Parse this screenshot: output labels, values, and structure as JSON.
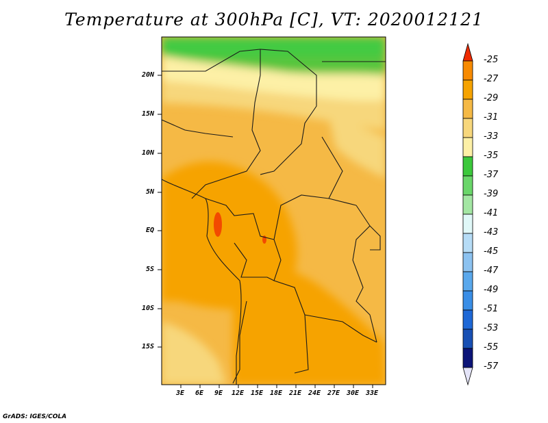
{
  "title": "Temperature at 300hPa [C], VT: 2020012121",
  "credit": "GrADS: IGES/COLA",
  "lat_labels": [
    "20N",
    "15N",
    "10N",
    "5N",
    "EQ",
    "5S",
    "10S",
    "15S"
  ],
  "lon_labels": [
    "3E",
    "6E",
    "9E",
    "12E",
    "15E",
    "18E",
    "21E",
    "24E",
    "27E",
    "30E",
    "33E"
  ],
  "colorbar": {
    "labels": [
      "-25",
      "-27",
      "-29",
      "-31",
      "-33",
      "-35",
      "-37",
      "-39",
      "-41",
      "-43",
      "-45",
      "-47",
      "-49",
      "-51",
      "-53",
      "-55",
      "-57"
    ],
    "colors": [
      "#f24a00",
      "#f78a00",
      "#f6a300",
      "#f5b945",
      "#f7d77c",
      "#fdf0a6",
      "#3cc83c",
      "#6ad66a",
      "#a3e6a3",
      "#e0f8f8",
      "#b6dcf6",
      "#8cc2f0",
      "#5aa8ec",
      "#3a8ee6",
      "#1e68d6",
      "#1850b4",
      "#0c1478"
    ],
    "top_color": "#ee2b00",
    "bottom_color": "#e4e4f8"
  },
  "map": {
    "lat_range": [
      -20,
      25
    ],
    "lon_range": [
      0,
      35
    ],
    "units": "C",
    "level": "300hPa",
    "valid_time": "2020012121"
  }
}
